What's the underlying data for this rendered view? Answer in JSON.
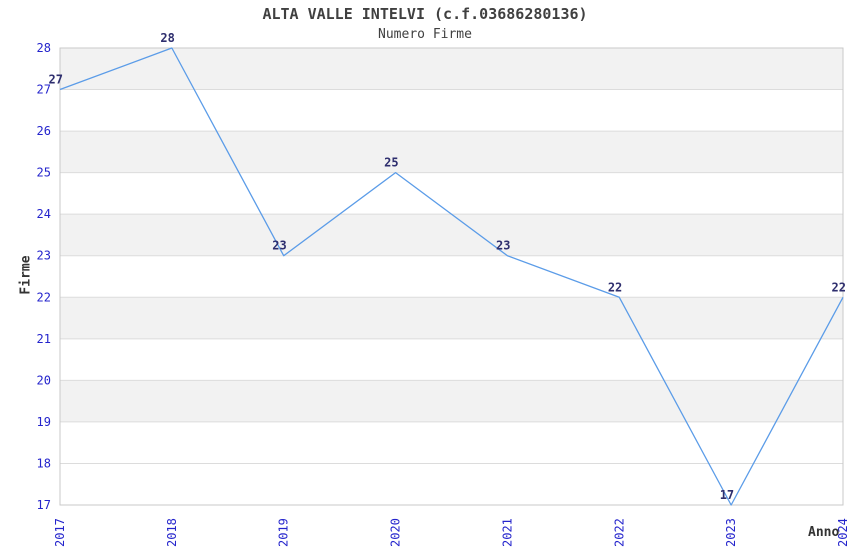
{
  "header": {
    "title": "ALTA VALLE INTELVI (c.f.03686280136)",
    "subtitle": "Numero Firme"
  },
  "chart_data": {
    "type": "line",
    "title": "ALTA VALLE INTELVI (c.f.03686280136)",
    "subtitle": "Numero Firme",
    "xlabel": "Anno",
    "ylabel": "Firme",
    "x": [
      2017,
      2018,
      2019,
      2020,
      2021,
      2022,
      2023,
      2024
    ],
    "series": [
      {
        "name": "Numero Firme",
        "values": [
          27,
          28,
          23,
          25,
          23,
          22,
          17,
          22
        ]
      }
    ],
    "ylim": [
      17,
      28
    ],
    "y_ticks": [
      17,
      18,
      19,
      20,
      21,
      22,
      23,
      24,
      25,
      26,
      27,
      28
    ],
    "grid": "horizontal-with-alternating-bands",
    "legend": "none",
    "data_labels": true,
    "colors": {
      "line": "#5B9CE8",
      "band": "#F2F2F2",
      "grid": "#DCDCDC",
      "border": "#C9C9C9",
      "tick_label": "#2424CC",
      "data_label": "#2E2E6E",
      "title": "#404040",
      "axis_title": "#333333",
      "background": "#FFFFFF"
    }
  }
}
